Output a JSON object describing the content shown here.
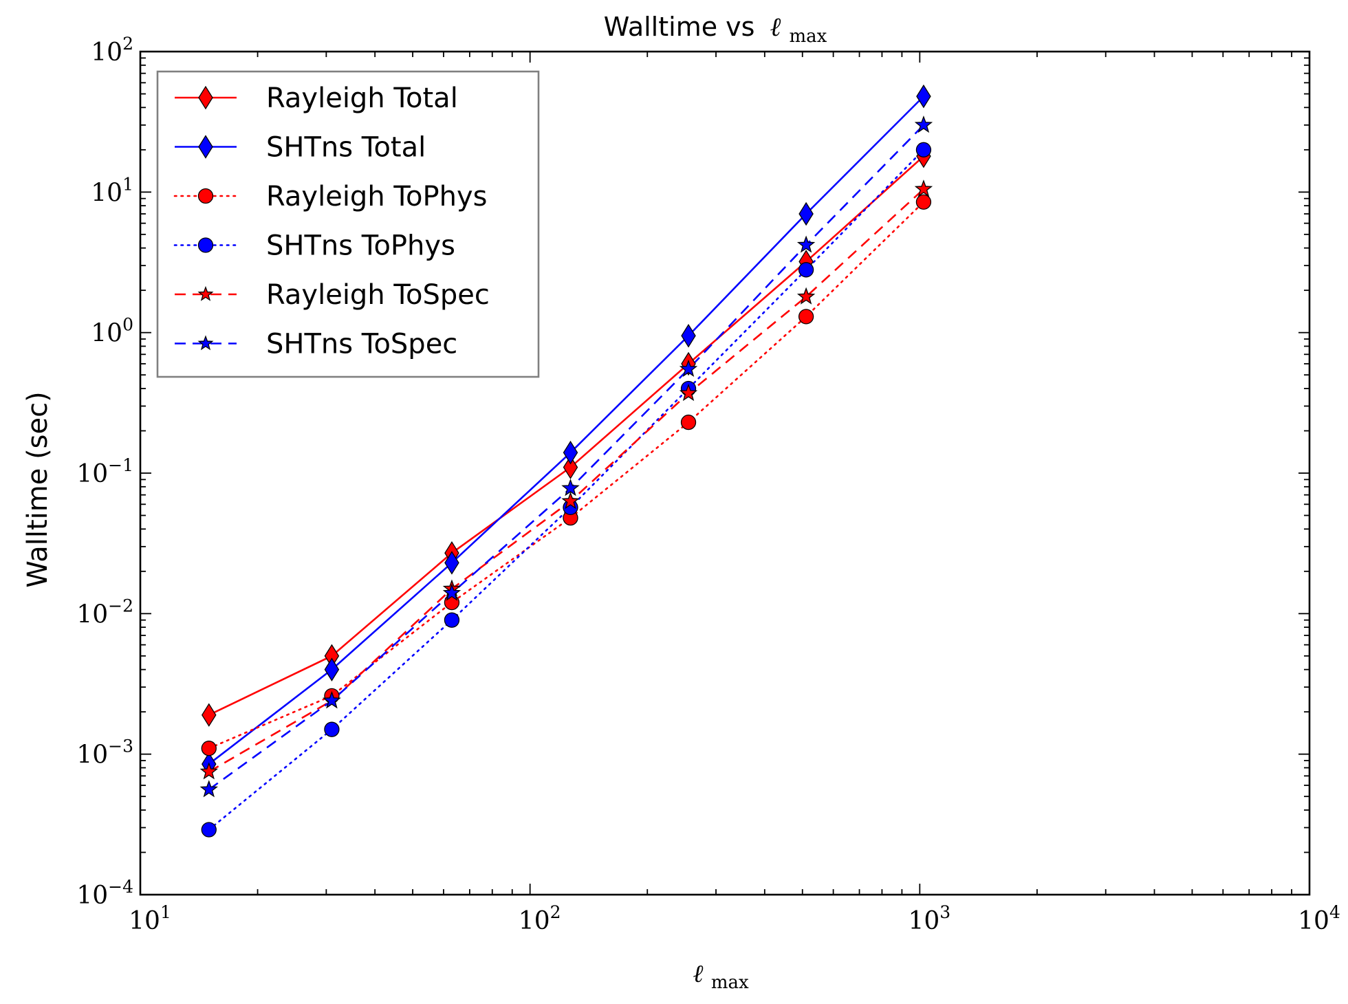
{
  "chart_data": {
    "type": "line",
    "title": "Walltime vs ℓmax",
    "title_text": "Walltime vs",
    "title_math": "ℓ",
    "title_math_sub": "max",
    "xlabel": "ℓ",
    "xlabel_sub": "max",
    "ylabel": "Walltime (sec)",
    "xscale": "log",
    "yscale": "log",
    "xlim": [
      10,
      10000
    ],
    "ylim": [
      0.0001,
      100
    ],
    "grid": false,
    "legend_position": "top-left",
    "x_ticks": [
      {
        "value": 10,
        "base": "10",
        "exp": "1"
      },
      {
        "value": 100,
        "base": "10",
        "exp": "2"
      },
      {
        "value": 1000,
        "base": "10",
        "exp": "3"
      },
      {
        "value": 10000,
        "base": "10",
        "exp": "4"
      }
    ],
    "y_ticks": [
      {
        "value": 0.0001,
        "base": "10",
        "exp": "−4"
      },
      {
        "value": 0.001,
        "base": "10",
        "exp": "−3"
      },
      {
        "value": 0.01,
        "base": "10",
        "exp": "−2"
      },
      {
        "value": 0.1,
        "base": "10",
        "exp": "−1"
      },
      {
        "value": 1,
        "base": "10",
        "exp": "0"
      },
      {
        "value": 10,
        "base": "10",
        "exp": "1"
      },
      {
        "value": 100,
        "base": "10",
        "exp": "2"
      }
    ],
    "x": [
      15,
      31,
      63,
      127,
      255,
      511,
      1023
    ],
    "series": [
      {
        "name": "Rayleigh Total",
        "color": "#ff0000",
        "linestyle": "solid",
        "marker": "diamond",
        "values": [
          0.0019,
          0.005,
          0.027,
          0.11,
          0.6,
          3.2,
          18
        ]
      },
      {
        "name": "SHTns Total",
        "color": "#0000ff",
        "linestyle": "solid",
        "marker": "diamond",
        "values": [
          0.00085,
          0.004,
          0.023,
          0.14,
          0.95,
          7.0,
          48
        ]
      },
      {
        "name": "Rayleigh ToPhys",
        "color": "#ff0000",
        "linestyle": "dotted",
        "marker": "circle",
        "values": [
          0.0011,
          0.0026,
          0.012,
          0.048,
          0.23,
          1.3,
          8.5
        ]
      },
      {
        "name": "SHTns ToPhys",
        "color": "#0000ff",
        "linestyle": "dotted",
        "marker": "circle",
        "values": [
          0.00029,
          0.0015,
          0.009,
          0.057,
          0.4,
          2.8,
          20
        ]
      },
      {
        "name": "Rayleigh ToSpec",
        "color": "#ff0000",
        "linestyle": "dashed",
        "marker": "star",
        "values": [
          0.00075,
          0.0024,
          0.015,
          0.063,
          0.37,
          1.8,
          10.5
        ]
      },
      {
        "name": "SHTns ToSpec",
        "color": "#0000ff",
        "linestyle": "dashed",
        "marker": "star",
        "values": [
          0.00056,
          0.0024,
          0.014,
          0.078,
          0.55,
          4.2,
          30
        ]
      }
    ]
  }
}
